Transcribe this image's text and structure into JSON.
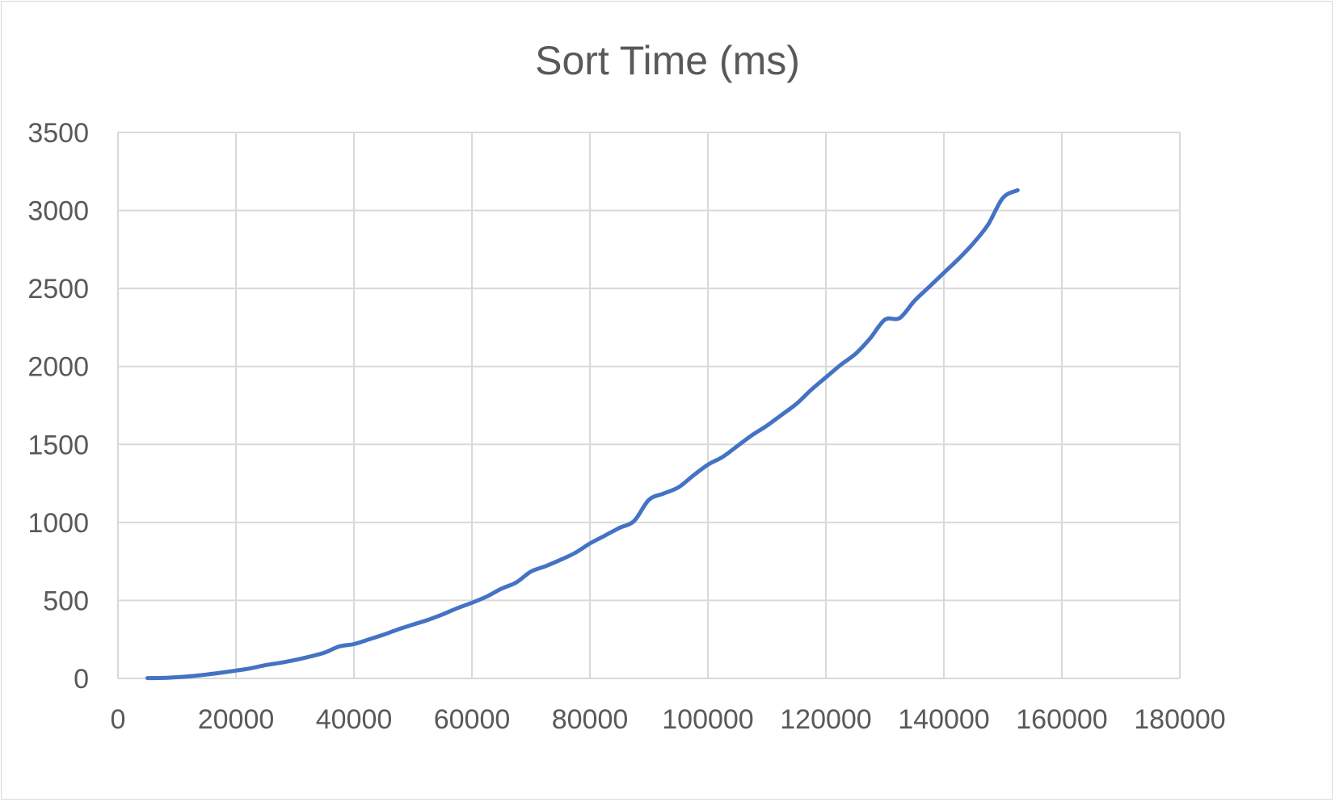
{
  "colors": {
    "series": "#4472c4",
    "grid": "#d9d9d9",
    "text": "#595959"
  },
  "chart_data": {
    "type": "line",
    "title": "Sort Time (ms)",
    "xlabel": "",
    "ylabel": "",
    "grid": true,
    "xlim": [
      0,
      180000
    ],
    "ylim": [
      0,
      3500
    ],
    "xticks": [
      "0",
      "20000",
      "40000",
      "60000",
      "80000",
      "100000",
      "120000",
      "140000",
      "160000",
      "180000"
    ],
    "yticks": [
      "0",
      "500",
      "1000",
      "1500",
      "2000",
      "2500",
      "3000",
      "3500"
    ],
    "series": [
      {
        "x": [
          5000,
          7500,
          10000,
          12500,
          15000,
          17500,
          20000,
          22500,
          25000,
          27500,
          30000,
          32500,
          35000,
          37500,
          40000,
          42500,
          45000,
          47500,
          50000,
          52500,
          55000,
          57500,
          60000,
          62500,
          65000,
          67500,
          70000,
          72500,
          75000,
          77500,
          80000,
          82500,
          85000,
          87500,
          90000,
          92500,
          95000,
          97500,
          100000,
          102500,
          105000,
          107500,
          110000,
          112500,
          115000,
          117500,
          120000,
          122500,
          125000,
          127500,
          130000,
          132500,
          135000,
          137500,
          140000,
          142500,
          145000,
          147500,
          150000,
          152500
        ],
        "y": [
          2,
          3,
          8,
          15,
          25,
          37,
          50,
          65,
          85,
          100,
          118,
          140,
          165,
          205,
          220,
          250,
          280,
          315,
          345,
          375,
          410,
          450,
          485,
          525,
          575,
          615,
          685,
          720,
          760,
          805,
          865,
          915,
          965,
          1010,
          1145,
          1185,
          1225,
          1300,
          1370,
          1420,
          1490,
          1560,
          1620,
          1690,
          1760,
          1850,
          1930,
          2010,
          2080,
          2180,
          2300,
          2310,
          2420,
          2510,
          2600,
          2690,
          2790,
          2910,
          3080,
          3130
        ]
      }
    ]
  }
}
